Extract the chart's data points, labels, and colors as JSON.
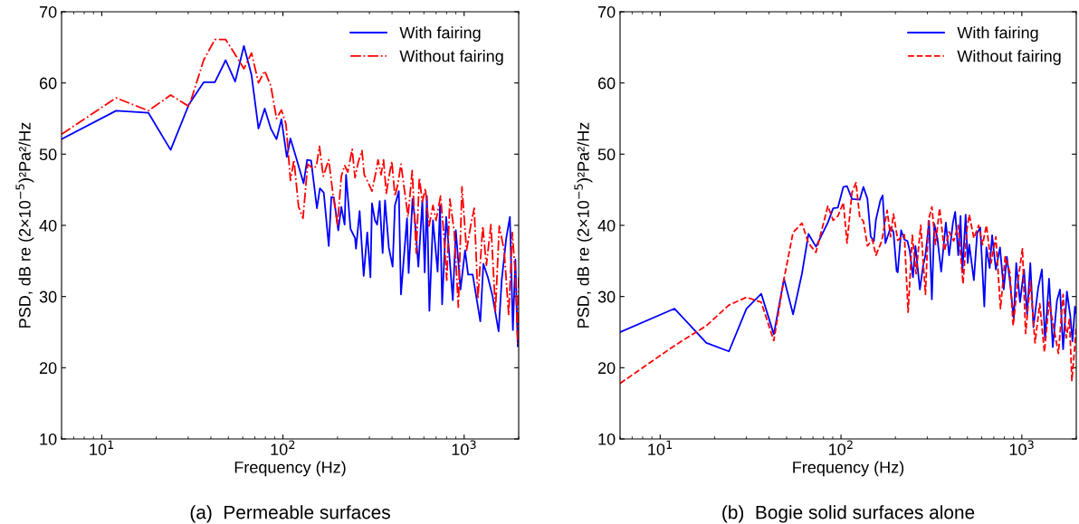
{
  "chart_data": [
    {
      "type": "line",
      "title": "(a)  Permeable surfaces",
      "xlabel": "Frequency (Hz)",
      "ylabel": "PSD, dB re (2×10$^{−5}$)²Pa²/Hz",
      "log": "x",
      "xlim": [
        6,
        2000
      ],
      "ylim": [
        10,
        70
      ],
      "xticks": [
        {
          "value": 10,
          "label": "10$^{1}$"
        },
        {
          "value": 100,
          "label": "10$^{2}$"
        },
        {
          "value": 1000,
          "label": "10$^{3}$"
        }
      ],
      "yticks": [
        10,
        20,
        30,
        40,
        50,
        60,
        70
      ],
      "grid": false,
      "legend": "top right",
      "series": [
        {
          "name": "With fairing",
          "color": "#0000ff",
          "line_style": "solid",
          "x": [
            6,
            12,
            18.1,
            24,
            30.3,
            36.5,
            42.1,
            48.3,
            54.5,
            60.9,
            67.1,
            73.3,
            79.3,
            85.7,
            92.2,
            98.1,
            105,
            110,
            118,
            130,
            136,
            143,
            154,
            160,
            168,
            179,
            185,
            191,
            202,
            210,
            219,
            223,
            236,
            250,
            253,
            265,
            279,
            292,
            304,
            310,
            322,
            331,
            342,
            355,
            366,
            384,
            403,
            415,
            436,
            448,
            484,
            494,
            519,
            534,
            559,
            588,
            606,
            623,
            643,
            673,
            714,
            736,
            756,
            796,
            827,
            866,
            900,
            955,
            1012,
            1052,
            1115,
            1228,
            1277,
            1353,
            1434,
            1550,
            1612,
            1708,
            1789,
            1858,
            1918,
            1977,
            2000
          ],
          "values": [
            52.1,
            56.1,
            55.8,
            50.6,
            57.0,
            60.1,
            60.1,
            63.2,
            60.2,
            65.2,
            61.1,
            53.6,
            56.4,
            53.6,
            52.1,
            54.9,
            49.6,
            52.2,
            49.6,
            45.9,
            49.2,
            49.1,
            42.4,
            45.2,
            44.6,
            37.1,
            44.0,
            43.9,
            39.3,
            42.6,
            40.1,
            47.1,
            39.5,
            38.2,
            36.7,
            42.0,
            32.9,
            39.0,
            32.7,
            43.1,
            40.7,
            40.1,
            43.4,
            36.1,
            43.5,
            36.9,
            34.2,
            42.8,
            44.8,
            30.3,
            41.0,
            33.3,
            43.7,
            41.0,
            34.2,
            43.5,
            33.4,
            44.1,
            28.0,
            40.7,
            33.5,
            42.8,
            28.9,
            41.2,
            36.1,
            29.5,
            39.3,
            31.0,
            36.5,
            33.1,
            33.1,
            26.5,
            34.6,
            32.7,
            30.1,
            25.1,
            32.3,
            38.2,
            41.2,
            25.3,
            35.2,
            23.0,
            26.3
          ]
        },
        {
          "name": "Without fairing",
          "color": "#ff0000",
          "line_style": "dashdot",
          "x": [
            6,
            12,
            18.1,
            24,
            30.3,
            36.5,
            42.1,
            48.3,
            54.5,
            60.9,
            67.1,
            73.3,
            79.3,
            85.7,
            92.2,
            98.1,
            104,
            110,
            115,
            122,
            129,
            137,
            146,
            153,
            159,
            167,
            179,
            189,
            200,
            210,
            219,
            228,
            241,
            250,
            260,
            273,
            281,
            298,
            310,
            326,
            335,
            348,
            359,
            372,
            384,
            399,
            415,
            431,
            448,
            466,
            490,
            517,
            544,
            566,
            588,
            611,
            640,
            673,
            700,
            741,
            771,
            802,
            834,
            883,
            929,
            973,
            1031,
            1093,
            1137,
            1191,
            1267,
            1327,
            1406,
            1489,
            1563,
            1663,
            1762,
            1845,
            1918,
            1977,
            2000
          ],
          "values": [
            52.8,
            57.9,
            56.1,
            58.3,
            56.7,
            63.2,
            66.1,
            66.1,
            64.0,
            62.0,
            64.2,
            60.0,
            61.7,
            59.6,
            55.0,
            56.2,
            54.2,
            46.3,
            49.2,
            42.6,
            41.0,
            48.6,
            48.0,
            48.3,
            51.1,
            46.9,
            49.2,
            44.3,
            40.1,
            46.9,
            48.4,
            47.5,
            50.7,
            46.7,
            48.8,
            50.5,
            47.1,
            45.8,
            44.8,
            47.5,
            49.2,
            47.1,
            49.2,
            44.5,
            46.7,
            49.0,
            44.1,
            45.8,
            48.6,
            45.4,
            41.2,
            47.7,
            36.1,
            46.7,
            43.3,
            45.2,
            39.9,
            42.8,
            40.7,
            44.1,
            39.0,
            32.3,
            43.7,
            39.0,
            28.5,
            45.4,
            36.5,
            40.3,
            42.4,
            29.7,
            39.9,
            34.4,
            40.1,
            28.0,
            39.9,
            36.5,
            27.4,
            39.0,
            33.1,
            23.4,
            33.0
          ]
        }
      ]
    },
    {
      "type": "line",
      "title": "(b)  Bogie solid surfaces alone",
      "xlabel": "Frequency (Hz)",
      "ylabel": "PSD, dB re (2×10$^{−5}$)²Pa²/Hz",
      "log": "x",
      "xlim": [
        6,
        2000
      ],
      "ylim": [
        10,
        70
      ],
      "xticks": [
        {
          "value": 10,
          "label": "10$^{1}$"
        },
        {
          "value": 100,
          "label": "10$^{2}$"
        },
        {
          "value": 1000,
          "label": "10$^{3}$"
        }
      ],
      "yticks": [
        10,
        20,
        30,
        40,
        50,
        60,
        70
      ],
      "grid": false,
      "legend": "top right",
      "series": [
        {
          "name": "With fairing",
          "color": "#0000ff",
          "line_style": "solid",
          "x": [
            6,
            12,
            18,
            24,
            30,
            36.2,
            42.5,
            48.4,
            54.3,
            60.8,
            66.1,
            72.7,
            84.6,
            90.5,
            96.1,
            103,
            108,
            115,
            127,
            133,
            140,
            146,
            152,
            156,
            165,
            170,
            176,
            188,
            195,
            203,
            206,
            215,
            224,
            233,
            240,
            250,
            258,
            273,
            284,
            293,
            307,
            318,
            328,
            341,
            358,
            380,
            396,
            416,
            428,
            445,
            458,
            469,
            489,
            502,
            512,
            543,
            566,
            589,
            620,
            637,
            664,
            685,
            718,
            757,
            794,
            826,
            859,
            902,
            931,
            977,
            1028,
            1069,
            1114,
            1159,
            1231,
            1291,
            1343,
            1414,
            1483,
            1563,
            1626,
            1691,
            1775,
            1854,
            1906,
            1967,
            2000
          ],
          "values": [
            25.0,
            28.3,
            23.5,
            22.3,
            28.3,
            30.4,
            24.7,
            32.5,
            27.5,
            33.2,
            38.8,
            37.0,
            40.4,
            42.4,
            42.5,
            45.4,
            45.5,
            43.7,
            43.6,
            45.4,
            43.7,
            38.4,
            37.8,
            40.8,
            43.5,
            44.2,
            37.5,
            39.7,
            39.1,
            33.6,
            33.4,
            39.3,
            38.0,
            37.8,
            36.4,
            32.7,
            37.1,
            31.0,
            34.2,
            35.8,
            40.6,
            29.6,
            40.2,
            38.2,
            33.5,
            40.4,
            35.8,
            40.4,
            41.9,
            35.8,
            41.3,
            33.4,
            41.5,
            34.7,
            37.3,
            32.3,
            38.9,
            39.7,
            28.6,
            36.9,
            34.0,
            38.6,
            33.8,
            36.9,
            31.0,
            35.6,
            32.1,
            26.8,
            34.7,
            29.2,
            33.8,
            27.5,
            34.7,
            25.7,
            31.2,
            33.8,
            23.9,
            32.5,
            22.9,
            29.4,
            31.0,
            22.6,
            30.7,
            27.2,
            23.7,
            28.6,
            27.7
          ]
        },
        {
          "name": "Without fairing",
          "color": "#ff0000",
          "line_style": "dashed",
          "x": [
            6,
            12,
            18,
            24,
            30,
            36.2,
            42.5,
            48.4,
            54.3,
            60.8,
            66.1,
            72.7,
            84.6,
            90.5,
            96.1,
            103,
            108,
            115,
            121,
            127,
            133,
            140,
            149,
            156,
            168,
            180,
            188,
            195,
            206,
            224,
            235,
            248,
            260,
            276,
            293,
            305,
            318,
            333,
            351,
            373,
            396,
            420,
            445,
            473,
            496,
            512,
            543,
            577,
            606,
            637,
            676,
            718,
            762,
            809,
            859,
            895,
            950,
            1008,
            1049,
            1114,
            1183,
            1256,
            1333,
            1414,
            1500,
            1593,
            1691,
            1761,
            1833,
            1891,
            1967,
            2000
          ],
          "values": [
            17.8,
            23.1,
            25.9,
            28.8,
            29.9,
            29.2,
            23.8,
            32.5,
            39.0,
            40.3,
            37.5,
            36.2,
            42.7,
            40.7,
            41.3,
            43.2,
            37.5,
            44.6,
            46.0,
            41.1,
            40.6,
            37.1,
            38.0,
            35.8,
            37.8,
            42.1,
            38.4,
            41.6,
            37.9,
            38.7,
            27.8,
            38.6,
            33.2,
            40.0,
            30.3,
            40.8,
            42.6,
            37.3,
            42.4,
            36.4,
            39.1,
            37.8,
            40.0,
            31.8,
            39.3,
            41.5,
            38.2,
            40.0,
            37.3,
            40.0,
            34.7,
            38.4,
            28.3,
            35.6,
            33.4,
            25.9,
            32.1,
            36.7,
            24.8,
            32.1,
            23.5,
            29.0,
            22.2,
            29.2,
            25.7,
            22.0,
            30.3,
            24.2,
            26.8,
            18.2,
            23.3,
            25.9
          ]
        }
      ]
    }
  ]
}
